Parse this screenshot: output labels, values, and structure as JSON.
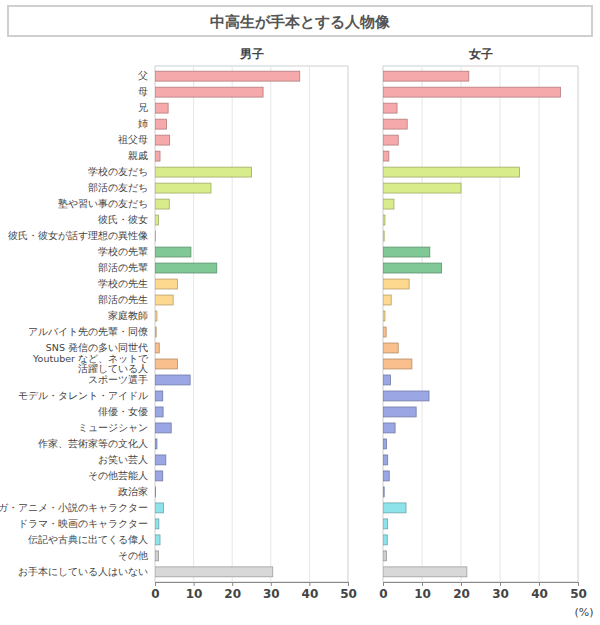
{
  "chart_data": {
    "type": "bar",
    "orientation": "horizontal",
    "grid": true,
    "title": "中高生が手本とする人物像",
    "x_label": "(%)",
    "categories": [
      "父",
      "母",
      "兄",
      "姉",
      "祖父母",
      "親戚",
      "学校の友だち",
      "部活の友だち",
      "塾や習い事の友だち",
      "彼氏・彼女",
      "彼氏・彼女が話す理想の異性像",
      "学校の先輩",
      "部活の先輩",
      "学校の先生",
      "部活の先生",
      "家庭教師",
      "アルバイト先の先輩・同僚",
      "SNS 発信の多い同世代",
      "Youtuber など、ネットで\n活躍している人",
      "スポーツ選手",
      "モデル・タレント・アイドル",
      "俳優・女優",
      "ミュージシャン",
      "作家、芸術家等の文化人",
      "お笑い芸人",
      "その他芸能人",
      "政治家",
      "マンガ・アニメ・小説のキャラクター",
      "ドラマ・映画のキャラクター",
      "伝記や古典に出てくる偉人",
      "その他",
      "お手本にしている人はいない"
    ],
    "colors": [
      "#f6a9ab",
      "#f6a9ab",
      "#f6a9ab",
      "#f6a9ab",
      "#f6a9ab",
      "#f6a9ab",
      "#d8ec8c",
      "#d8ec8c",
      "#d8ec8c",
      "#d8ec8c",
      "#d8ec8c",
      "#80c896",
      "#80c896",
      "#fcd98e",
      "#fcd98e",
      "#fcd98e",
      "#f9bf8c",
      "#f9bf8c",
      "#f9bf8c",
      "#9ba7e4",
      "#9ba7e4",
      "#9ba7e4",
      "#9ba7e4",
      "#9ba7e4",
      "#9ba7e4",
      "#9ba7e4",
      "#9ba7e4",
      "#8ee3ea",
      "#8ee3ea",
      "#8ee3ea",
      "#cfcfcf",
      "#d8d8d8"
    ],
    "series": [
      {
        "name": "男子",
        "values": [
          37.5,
          28,
          3.4,
          3,
          3.8,
          1.3,
          25,
          14.5,
          3.7,
          0.9,
          0.1,
          9.3,
          16,
          5.8,
          4.7,
          0.5,
          0.3,
          1.1,
          5.8,
          9.1,
          2,
          2.1,
          4.2,
          0.5,
          2.8,
          2,
          0.1,
          2.2,
          1,
          1.3,
          0.9,
          30.5
        ]
      },
      {
        "name": "女子",
        "values": [
          22,
          45.5,
          3.6,
          6.2,
          3.9,
          1.5,
          35,
          20,
          2.8,
          0.5,
          0.3,
          12,
          15,
          6.7,
          2.1,
          0.5,
          0.8,
          3.9,
          7.4,
          1.9,
          11.8,
          8.5,
          3.1,
          0.9,
          1.2,
          1.6,
          0.3,
          5.9,
          1.2,
          1.1,
          0.9,
          21.5
        ]
      }
    ],
    "xlim": [
      0,
      50
    ],
    "xticks": [
      0,
      10,
      20,
      30,
      40,
      50
    ]
  }
}
